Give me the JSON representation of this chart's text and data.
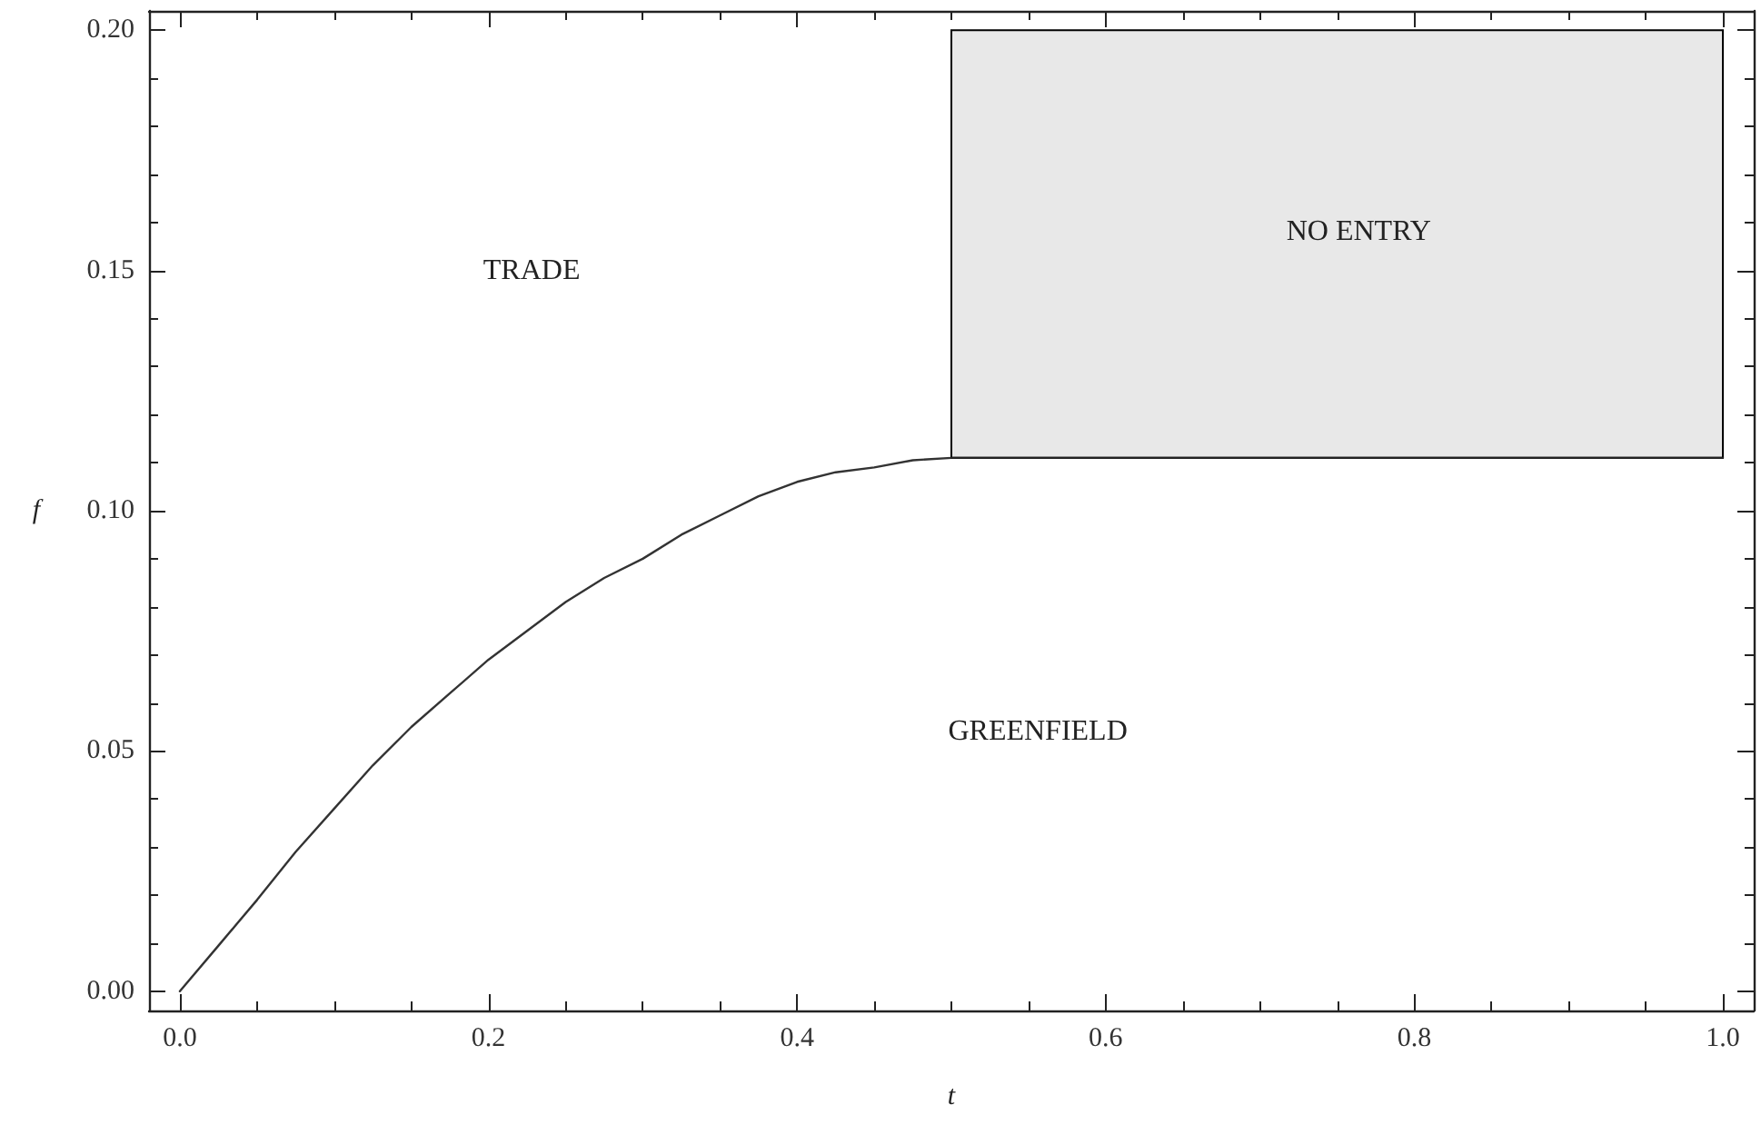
{
  "chart_data": {
    "type": "line",
    "xlabel": "t",
    "ylabel": "f",
    "annotations": [
      "TRADE",
      "NO ENTRY",
      "GREENFIELD"
    ],
    "xlim": [
      -0.02,
      1.02
    ],
    "ylim": [
      -0.004,
      0.204
    ],
    "xticks": [
      {
        "value": 0,
        "label": "0.0"
      },
      {
        "value": 0.05,
        "label": null
      },
      {
        "value": 0.1,
        "label": null
      },
      {
        "value": 0.15,
        "label": null
      },
      {
        "value": 0.2,
        "label": "0.2"
      },
      {
        "value": 0.25,
        "label": null
      },
      {
        "value": 0.3,
        "label": null
      },
      {
        "value": 0.35,
        "label": null
      },
      {
        "value": 0.4,
        "label": "0.4"
      },
      {
        "value": 0.45,
        "label": null
      },
      {
        "value": 0.5,
        "label": null
      },
      {
        "value": 0.55,
        "label": null
      },
      {
        "value": 0.6,
        "label": "0.6"
      },
      {
        "value": 0.65,
        "label": null
      },
      {
        "value": 0.7,
        "label": null
      },
      {
        "value": 0.75,
        "label": null
      },
      {
        "value": 0.8,
        "label": "0.8"
      },
      {
        "value": 0.85,
        "label": null
      },
      {
        "value": 0.9,
        "label": null
      },
      {
        "value": 0.95,
        "label": null
      },
      {
        "value": 1,
        "label": "1.0"
      }
    ],
    "yticks": [
      {
        "value": 0,
        "label": "0.00"
      },
      {
        "value": 0.01,
        "label": null
      },
      {
        "value": 0.02,
        "label": null
      },
      {
        "value": 0.03,
        "label": null
      },
      {
        "value": 0.04,
        "label": null
      },
      {
        "value": 0.05,
        "label": "0.05"
      },
      {
        "value": 0.06,
        "label": null
      },
      {
        "value": 0.07,
        "label": null
      },
      {
        "value": 0.08,
        "label": null
      },
      {
        "value": 0.09,
        "label": null
      },
      {
        "value": 0.1,
        "label": "0.10"
      },
      {
        "value": 0.11,
        "label": null
      },
      {
        "value": 0.12,
        "label": null
      },
      {
        "value": 0.13,
        "label": null
      },
      {
        "value": 0.14,
        "label": null
      },
      {
        "value": 0.15,
        "label": "0.15"
      },
      {
        "value": 0.16,
        "label": null
      },
      {
        "value": 0.17,
        "label": null
      },
      {
        "value": 0.18,
        "label": null
      },
      {
        "value": 0.19,
        "label": null
      },
      {
        "value": 0.2,
        "label": "0.20"
      }
    ],
    "grid": false,
    "marker": "none",
    "line_style": "solid",
    "series": [
      {
        "color": "#333333",
        "x": [
          0,
          0.025,
          0.05,
          0.075,
          0.1,
          0.125,
          0.15,
          0.175,
          0.2,
          0.225,
          0.25,
          0.275,
          0.3,
          0.325,
          0.35,
          0.375,
          0.4,
          0.425,
          0.45,
          0.475,
          0.5
        ],
        "values": [
          0,
          0.0095,
          0.019,
          0.029,
          0.038,
          0.047,
          0.055,
          0.062,
          0.069,
          0.075,
          0.081,
          0.086,
          0.09,
          0.095,
          0.099,
          0.103,
          0.106,
          0.108,
          0.109,
          0.1105,
          0.111
        ]
      },
      {
        "color": "#222222",
        "x": [
          0.5,
          1
        ],
        "values": [
          0.111,
          0.111
        ],
        "lower": [
          0.111,
          0.111
        ],
        "upper": [
          0.2,
          0.2
        ]
      }
    ]
  }
}
